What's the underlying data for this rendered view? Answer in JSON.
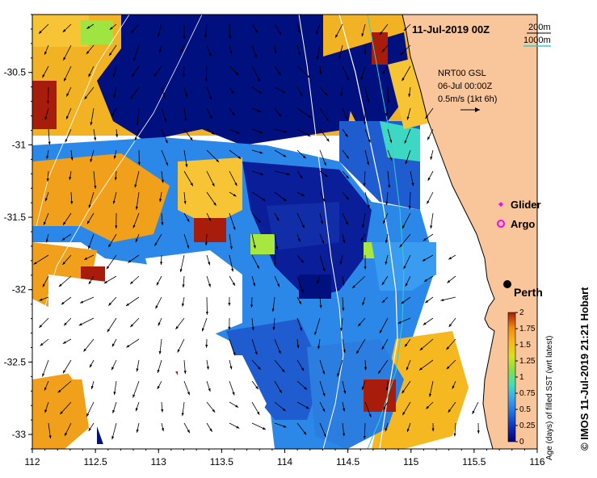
{
  "title": "11-Jul-2019 00Z",
  "bathymetry_legend": {
    "contour_1": "200m",
    "contour_2": "1000m",
    "color_1": "#000000",
    "color_2": "#2fd0c8"
  },
  "current_info": {
    "line1": "NRT00 GSL",
    "line2": "06-Jul 00:00Z",
    "line3": "0.5m/s (1kt 6h)"
  },
  "markers": {
    "glider": {
      "label": "Glider",
      "color": "#ff00ff",
      "icon": "diamond-icon"
    },
    "argo": {
      "label": "Argo",
      "color": "#ff00ff",
      "icon": "circle-icon"
    }
  },
  "city": {
    "label": "Perth",
    "icon": "filled-circle-icon"
  },
  "colorbar": {
    "label": "Age (days) of filled SST (wrt latest)",
    "ticks": [
      "0",
      "0.25",
      "0.5",
      "0.75",
      "1",
      "1.25",
      "1.5",
      "1.75",
      "2"
    ],
    "colors": [
      "#00007a",
      "#0a2fbf",
      "#1a6fe0",
      "#3aa2f0",
      "#3ee0c0",
      "#7ee14a",
      "#d9e020",
      "#f6b820",
      "#f08c10",
      "#a81c0c"
    ]
  },
  "credit": "© IMOS 11-Jul-2019 21:21 Hobart",
  "land_color": "#f9c59a",
  "chart_data": {
    "type": "heatmap",
    "title": "11-Jul-2019 00Z",
    "x_ticks": [
      "112",
      "112.5",
      "113",
      "113.5",
      "114",
      "114.5",
      "115",
      "115.5",
      "116"
    ],
    "y_ticks": [
      "-30.5",
      "-31",
      "-31.5",
      "-32",
      "-32.5",
      "-33"
    ],
    "xlim": [
      112,
      116
    ],
    "ylim": [
      -33.1,
      -30.1
    ],
    "value_range": [
      0,
      2
    ],
    "value_label": "Age (days) of filled SST (wrt latest)"
  }
}
